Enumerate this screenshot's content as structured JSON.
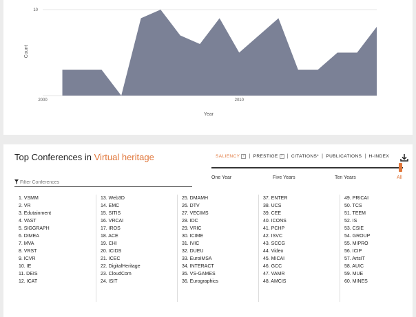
{
  "chart_data": {
    "type": "area",
    "x": [
      2001,
      2002,
      2003,
      2004,
      2005,
      2006,
      2007,
      2008,
      2009,
      2010,
      2011,
      2012,
      2013,
      2014,
      2015,
      2016,
      2017
    ],
    "values": [
      3,
      3,
      3,
      0,
      9,
      10,
      7,
      6,
      9,
      5,
      7,
      9,
      3,
      3,
      5,
      5,
      8
    ],
    "xlabel": "Year",
    "ylabel": "Count",
    "x_ticks": [
      "2000",
      "2010"
    ],
    "y_ticks": [
      "10"
    ],
    "xlim": [
      2000,
      2017
    ],
    "ylim": [
      0,
      10
    ],
    "grid": true,
    "fill_color": "#7b8196"
  },
  "conferences": {
    "title_prefix": "Top Conferences in ",
    "topic": "Virtual heritage",
    "metrics": [
      "SALIENCY",
      "PRESTIGE",
      "CITATIONS*",
      "PUBLICATIONS",
      "H-INDEX"
    ],
    "active_metric": "SALIENCY",
    "help_mark": "?",
    "separator": "|",
    "filter_placeholder": "Filter Conferences",
    "time_ranges": [
      "One Year",
      "Five Years",
      "Ten Years",
      "All"
    ],
    "active_time_range": "All",
    "accent_color": "#e0763a",
    "columns": [
      [
        "1. VSMM",
        "2. VR",
        "3. Edutainment",
        "4. VAST",
        "5. SIGGRAPH",
        "6. DIMEA",
        "7. MVA",
        "8. VRST",
        "9. ICVR",
        "10. IE",
        "11. DEIS",
        "12. ICAT"
      ],
      [
        "13. Web3D",
        "14. EMC",
        "15. SITIS",
        "16. VRCAI",
        "17. IROS",
        "18. ACE",
        "19. CHI",
        "20. ICIDS",
        "21. ICEC",
        "22. DigitalHeritage",
        "23. CloudCom",
        "24. ISIT"
      ],
      [
        "25. DMAMH",
        "26. DTV",
        "27. VECIMS",
        "28. IDC",
        "29. VRIC",
        "30. ICIME",
        "31. IVIC",
        "32. DUEU",
        "33. EuroIMSA",
        "34. INTERACT",
        "35. VS-GAMES",
        "36. Eurographics"
      ],
      [
        "37. ENTER",
        "38. UCS",
        "39. CEE",
        "40. ICONS",
        "41. PCHP",
        "42. ISVC",
        "43. SCCG",
        "44. Video",
        "45. MICAI",
        "46. GCC",
        "47. VAMR",
        "48. AMCIS"
      ],
      [
        "49. PRICAI",
        "50. TCS",
        "51. TEEM",
        "52. IS",
        "53. CSIE",
        "54. GROUP",
        "55. MIPRO",
        "56. ICIP",
        "57. ArtsIT",
        "58. AUIC",
        "59. MUE",
        "60. MINES"
      ]
    ]
  }
}
